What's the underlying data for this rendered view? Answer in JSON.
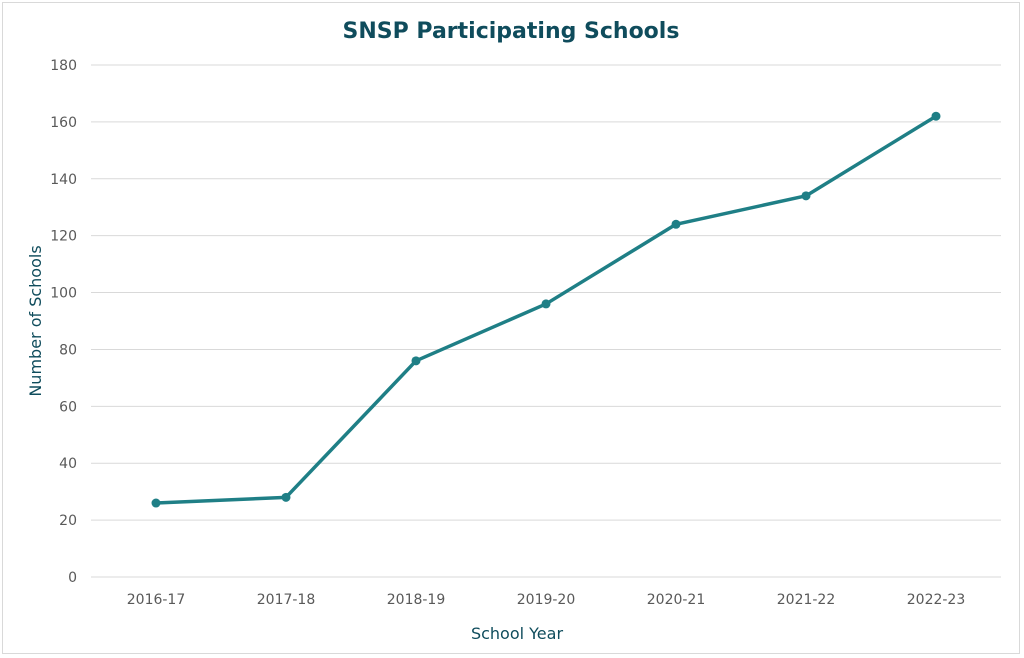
{
  "chart_data": {
    "type": "line",
    "title": "SNSP Participating Schools",
    "xlabel": "School Year",
    "ylabel": "Number of Schools",
    "categories": [
      "2016-17",
      "2017-18",
      "2018-19",
      "2019-20",
      "2020-21",
      "2021-22",
      "2022-23"
    ],
    "series": [
      {
        "values": [
          26,
          28,
          76,
          96,
          124,
          134,
          162
        ],
        "color": "#1f7f86"
      }
    ],
    "ylim": [
      0,
      180
    ],
    "yticks": [
      "0",
      "20",
      "40",
      "60",
      "80",
      "100",
      "120",
      "140",
      "160",
      "180"
    ],
    "grid": true,
    "legend": "none"
  }
}
